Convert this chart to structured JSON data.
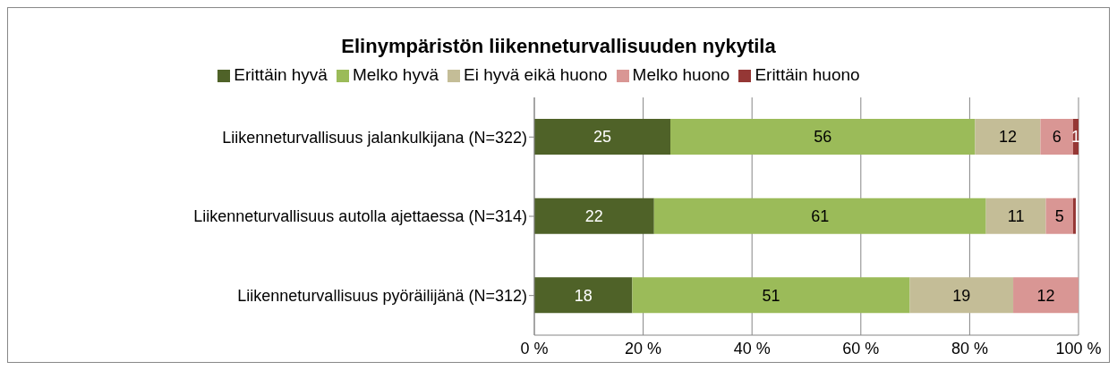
{
  "chart_data": {
    "type": "bar",
    "orientation": "horizontal",
    "stacked": true,
    "title": "Elinympäristön liikenneturvallisuuden nykytila",
    "categories": [
      "Liikenneturvallisuus jalankulkijana (N=322)",
      "Liikenneturvallisuus autolla ajettaessa (N=314)",
      "Liikenneturvallisuus pyöräilijänä (N=312)"
    ],
    "series": [
      {
        "name": "Erittäin hyvä",
        "color": "#4f6228",
        "values": [
          25,
          22,
          18
        ],
        "value_labels": [
          "25",
          "22",
          "18"
        ]
      },
      {
        "name": "Melko hyvä",
        "color": "#9bbb59",
        "values": [
          56,
          61,
          51
        ],
        "value_labels": [
          "56",
          "61",
          "51"
        ]
      },
      {
        "name": "Ei hyvä eikä huono",
        "color": "#c4bd97",
        "values": [
          12,
          11,
          19
        ],
        "value_labels": [
          "12",
          "11",
          "19"
        ]
      },
      {
        "name": "Melko huono",
        "color": "#d99694",
        "values": [
          6,
          5,
          12
        ],
        "value_labels": [
          "6",
          "5",
          "12"
        ]
      },
      {
        "name": "Erittäin huono",
        "color": "#953735",
        "values": [
          1,
          0.5,
          0.3
        ],
        "value_labels": [
          "1",
          null,
          null
        ]
      }
    ],
    "xlim": [
      0,
      100
    ],
    "xticks": [
      {
        "value": 0,
        "label": "0 %"
      },
      {
        "value": 20,
        "label": "20 %"
      },
      {
        "value": 40,
        "label": "40 %"
      },
      {
        "value": 60,
        "label": "60 %"
      },
      {
        "value": 80,
        "label": "80 %"
      },
      {
        "value": 100,
        "label": "100 %"
      }
    ],
    "grid": "x",
    "legend": "top"
  }
}
